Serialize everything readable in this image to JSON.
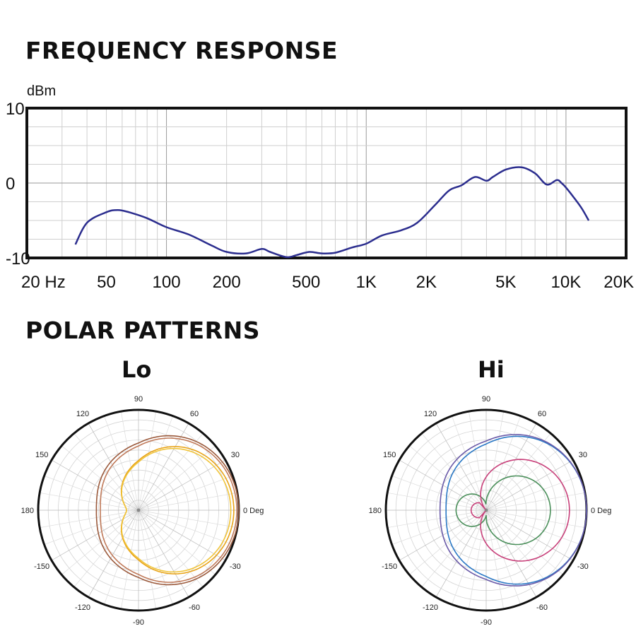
{
  "titles": {
    "frequency_response": "FREQUENCY RESPONSE",
    "polar_patterns": "POLAR PATTERNS"
  },
  "chart_data": [
    {
      "id": "frequency-response",
      "type": "line",
      "title": "FREQUENCY RESPONSE",
      "ylabel": "dBm",
      "xscale": "log",
      "xlim": [
        20,
        20000
      ],
      "ylim": [
        -10,
        10
      ],
      "grid": true,
      "x_tick_values": [
        20,
        50,
        100,
        200,
        500,
        1000,
        2000,
        5000,
        10000,
        20000
      ],
      "x_tick_labels": [
        "20 Hz",
        "50",
        "100",
        "200",
        "500",
        "1K",
        "2K",
        "5K",
        "10K",
        "20K"
      ],
      "y_tick_values": [
        10,
        0,
        -10
      ],
      "y_tick_labels": [
        "10",
        "0",
        "-10"
      ],
      "line_color": "#2b2d8e",
      "series": [
        {
          "x": [
            35,
            40,
            50,
            57,
            65,
            80,
            100,
            130,
            170,
            200,
            250,
            300,
            330,
            400,
            450,
            520,
            600,
            700,
            850,
            1000,
            1200,
            1500,
            1800,
            2200,
            2600,
            3000,
            3500,
            4000,
            4300,
            5000,
            6000,
            7000,
            8000,
            9000,
            9500,
            10000,
            11000,
            12000,
            13000
          ],
          "y": [
            -8.2,
            -5.3,
            -3.9,
            -3.6,
            -3.9,
            -4.7,
            -5.9,
            -6.9,
            -8.4,
            -9.2,
            -9.4,
            -8.8,
            -9.2,
            -9.9,
            -9.6,
            -9.2,
            -9.4,
            -9.3,
            -8.6,
            -8.1,
            -7.0,
            -6.3,
            -5.3,
            -3.0,
            -1.0,
            -0.3,
            0.8,
            0.3,
            0.8,
            1.8,
            2.1,
            1.3,
            -0.2,
            0.4,
            0.0,
            -0.6,
            -2.0,
            -3.4,
            -5.0
          ]
        }
      ]
    },
    {
      "id": "polar-lo",
      "type": "polar",
      "title": "Lo",
      "angle_tick_labels": [
        "0 Deg",
        "30",
        "60",
        "90",
        "120",
        "150",
        "180",
        "-150",
        "-120",
        "-90",
        "-60",
        "-30"
      ],
      "grid": true,
      "series": [
        {
          "color": "#e8a317",
          "front": 0.95,
          "back": 0.12,
          "shape": "cardioid"
        },
        {
          "color": "#f0c43a",
          "front": 0.92,
          "back": 0.12,
          "shape": "cardioid"
        },
        {
          "color": "#9b5a3c",
          "front": 1.0,
          "back": 0.42,
          "shape": "cardioid"
        },
        {
          "color": "#c07a5a",
          "front": 0.98,
          "back": 0.38,
          "shape": "cardioid"
        }
      ]
    },
    {
      "id": "polar-hi",
      "type": "polar",
      "title": "Hi",
      "angle_tick_labels": [
        "0 Deg",
        "30",
        "60",
        "90",
        "120",
        "150",
        "180",
        "-150",
        "-120",
        "-90",
        "-60",
        "-30"
      ],
      "grid": true,
      "series": [
        {
          "color": "#2a78c5",
          "front": 1.0,
          "back": 0.4,
          "shape": "cardioid"
        },
        {
          "color": "#6a5aa8",
          "front": 1.0,
          "back": 0.46,
          "shape": "cardioid"
        },
        {
          "color": "#4a8f5a",
          "front": 0.64,
          "back": 0.0,
          "shape": "figure8"
        },
        {
          "color": "#c8407a",
          "front": 0.83,
          "back": 0.25,
          "shape": "hypercardioid"
        }
      ]
    }
  ]
}
